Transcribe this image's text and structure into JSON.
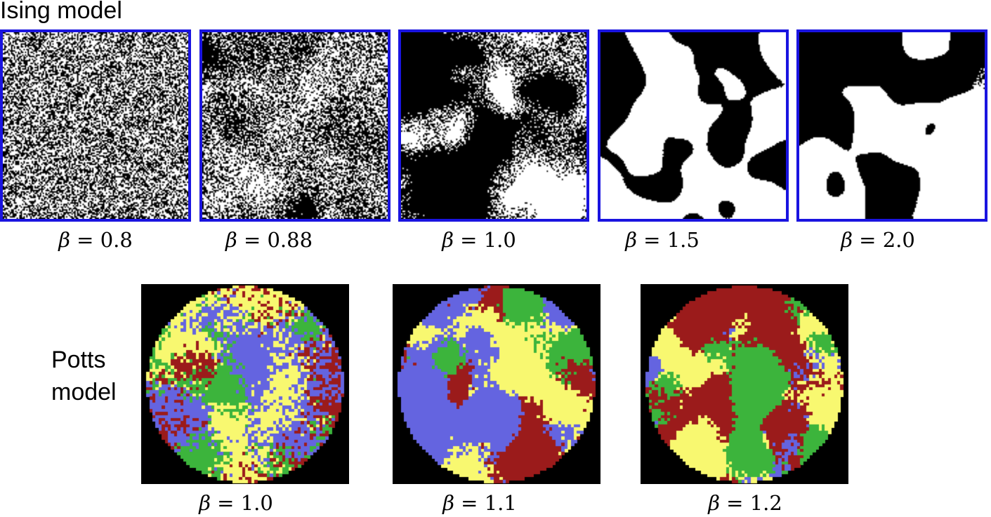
{
  "title": "Ising model",
  "ising": {
    "panels": [
      {
        "beta_symbol": "β",
        "beta_text": " = 0.8"
      },
      {
        "beta_symbol": "β",
        "beta_text": " = 0.88"
      },
      {
        "beta_symbol": "β",
        "beta_text": " = 1.0"
      },
      {
        "beta_symbol": "β",
        "beta_text": " = 1.5"
      },
      {
        "beta_symbol": "β",
        "beta_text": " = 2.0"
      }
    ],
    "colors": {
      "frame": "#1a14e0",
      "spin_up": "#ffffff",
      "spin_down": "#000000"
    }
  },
  "potts": {
    "title_line1": "Potts",
    "title_line2": "model",
    "panels": [
      {
        "beta_symbol": "β",
        "beta_text": " = 1.0"
      },
      {
        "beta_symbol": "β",
        "beta_text": " = 1.1"
      },
      {
        "beta_symbol": "β",
        "beta_text": " = 1.2"
      }
    ],
    "colors": {
      "background": "#000000",
      "state_colors": [
        "#9b1b1b",
        "#6464e0",
        "#f8f870",
        "#3cb43c"
      ]
    }
  }
}
